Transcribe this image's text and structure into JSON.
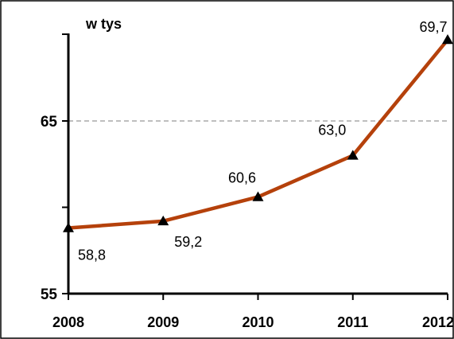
{
  "chart_data": {
    "type": "line",
    "title": "",
    "unit_label": "w tys",
    "xlabel": "",
    "ylabel": "",
    "categories": [
      "2008",
      "2009",
      "2010",
      "2011",
      "2012"
    ],
    "series": [
      {
        "values": [
          58.8,
          59.2,
          60.6,
          63.0,
          69.7
        ],
        "labels": [
          "58,8",
          "59,2",
          "60,6",
          "63,0",
          "69,7"
        ],
        "color": "#b5410b",
        "marker": "triangle"
      }
    ],
    "ylim": [
      55,
      69.7
    ],
    "yticks": [
      55,
      65
    ],
    "ytick_labels": [
      "55",
      "65"
    ],
    "minor_yticks": [
      60
    ],
    "gridlines_at": [
      65
    ],
    "legend": "none"
  }
}
